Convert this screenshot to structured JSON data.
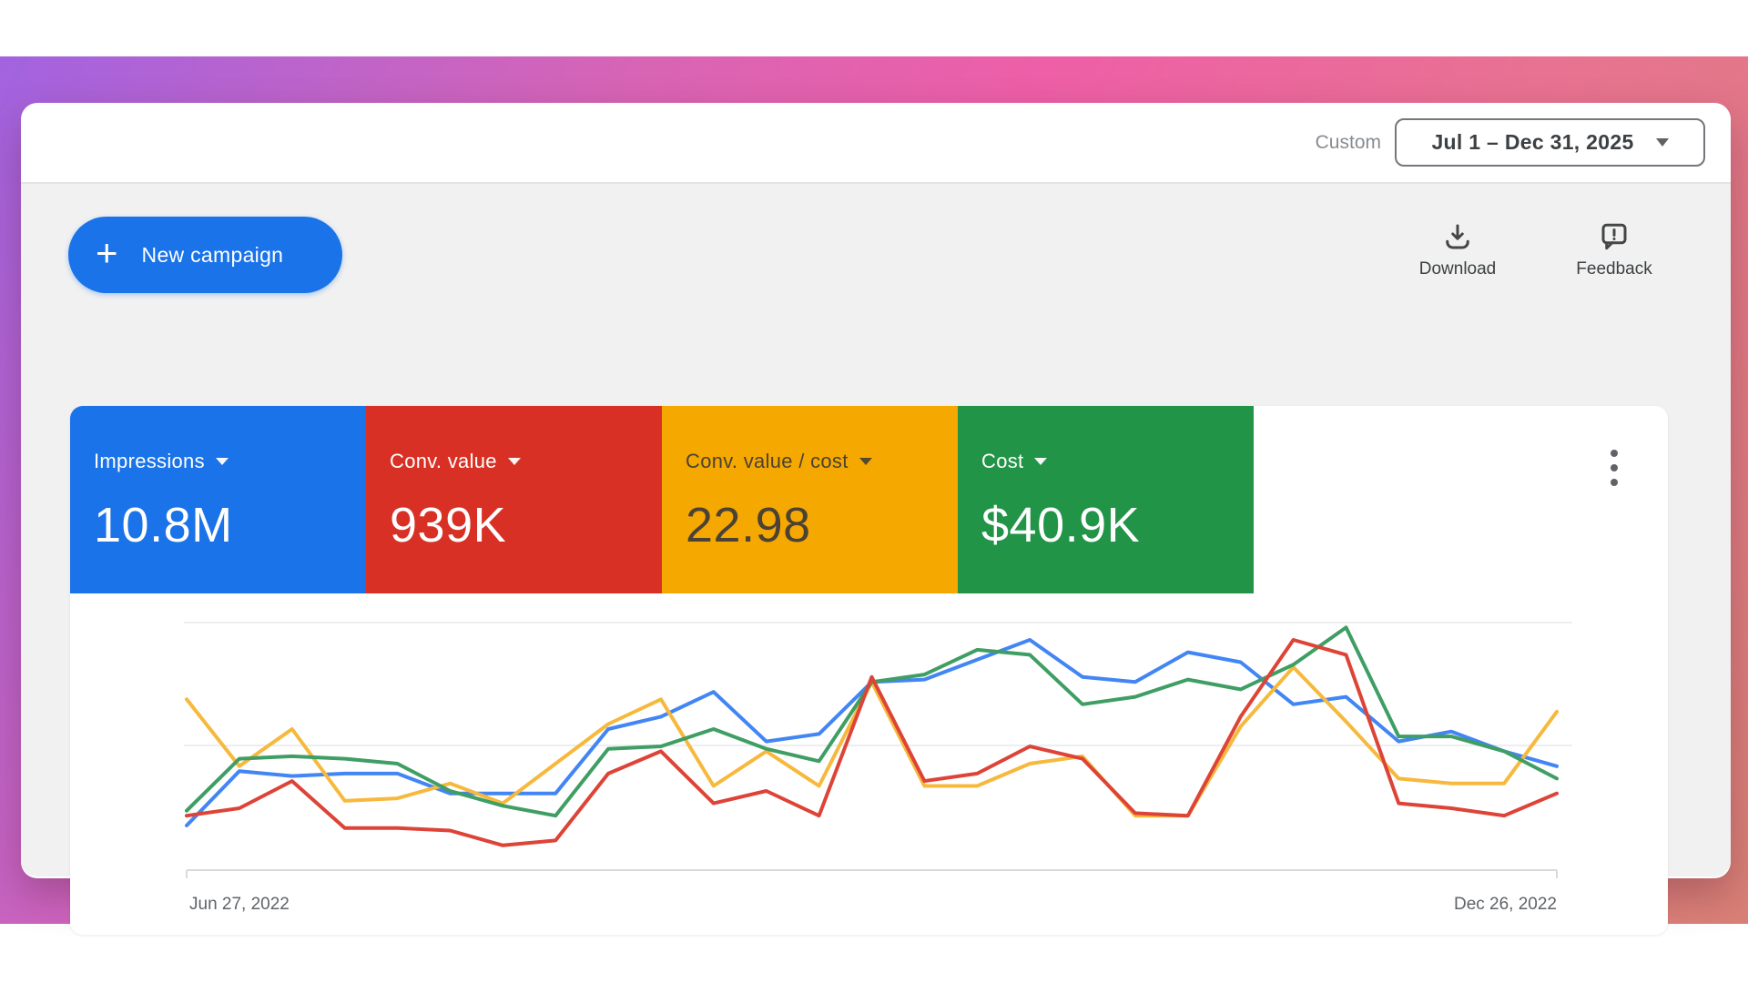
{
  "background": {
    "gradient_colors": [
      "#a263e0",
      "#ee5fa7",
      "#d98176"
    ]
  },
  "header": {
    "custom_label": "Custom",
    "date_range_value": "Jul 1 – Dec 31, 2025"
  },
  "toolbar": {
    "new_campaign_label": "New campaign",
    "download_label": "Download",
    "feedback_label": "Feedback"
  },
  "metric_cards": [
    {
      "label": "Impressions",
      "value": "10.8M",
      "color": "#1a73e8",
      "text_color": "#ffffff"
    },
    {
      "label": "Conv. value",
      "value": "939K",
      "color": "#d93025",
      "text_color": "#ffffff"
    },
    {
      "label": "Conv. value / cost",
      "value": "22.98",
      "color": "#f5a800",
      "text_color": "#4b4234"
    },
    {
      "label": "Cost",
      "value": "$40.9K",
      "color": "#219447",
      "text_color": "#ffffff"
    }
  ],
  "chart_data": {
    "type": "line",
    "title": "",
    "x_axis": {
      "start_label": "Jun 27, 2022",
      "end_label": "Dec 26, 2022",
      "points": 27,
      "interval": "weekly"
    },
    "y_axis": {
      "tick_labels_visible": false,
      "scale": "normalized 0-100 of plot height (baseline to top gridline)",
      "gridlines_at": [
        0,
        50,
        100
      ]
    },
    "legend": "none (series colors match metric cards)",
    "draw_order": [
      0,
      2,
      3,
      1
    ],
    "series": [
      {
        "name": "Impressions",
        "color": "#4285f4",
        "values": [
          18,
          40,
          38,
          39,
          39,
          31,
          31,
          31,
          57,
          62,
          72,
          52,
          55,
          76,
          77,
          85,
          93,
          78,
          76,
          88,
          84,
          67,
          70,
          52,
          56,
          48,
          42
        ]
      },
      {
        "name": "Conv. value",
        "color": "#dd4437",
        "values": [
          22,
          25,
          36,
          17,
          17,
          16,
          10,
          12,
          39,
          48,
          27,
          32,
          22,
          78,
          36,
          39,
          50,
          45,
          23,
          22,
          62,
          93,
          87,
          27,
          25,
          22,
          31
        ]
      },
      {
        "name": "Conv. value / cost",
        "color": "#f6b93d",
        "values": [
          69,
          42,
          57,
          28,
          29,
          35,
          27,
          43,
          59,
          69,
          34,
          48,
          34,
          76,
          34,
          34,
          43,
          46,
          22,
          22,
          58,
          82,
          60,
          37,
          35,
          35,
          64
        ]
      },
      {
        "name": "Cost",
        "color": "#3f9e63",
        "values": [
          24,
          45,
          46,
          45,
          43,
          32,
          26,
          22,
          49,
          50,
          57,
          49,
          44,
          76,
          79,
          89,
          87,
          67,
          70,
          77,
          73,
          83,
          98,
          54,
          54,
          48,
          37
        ]
      }
    ]
  }
}
